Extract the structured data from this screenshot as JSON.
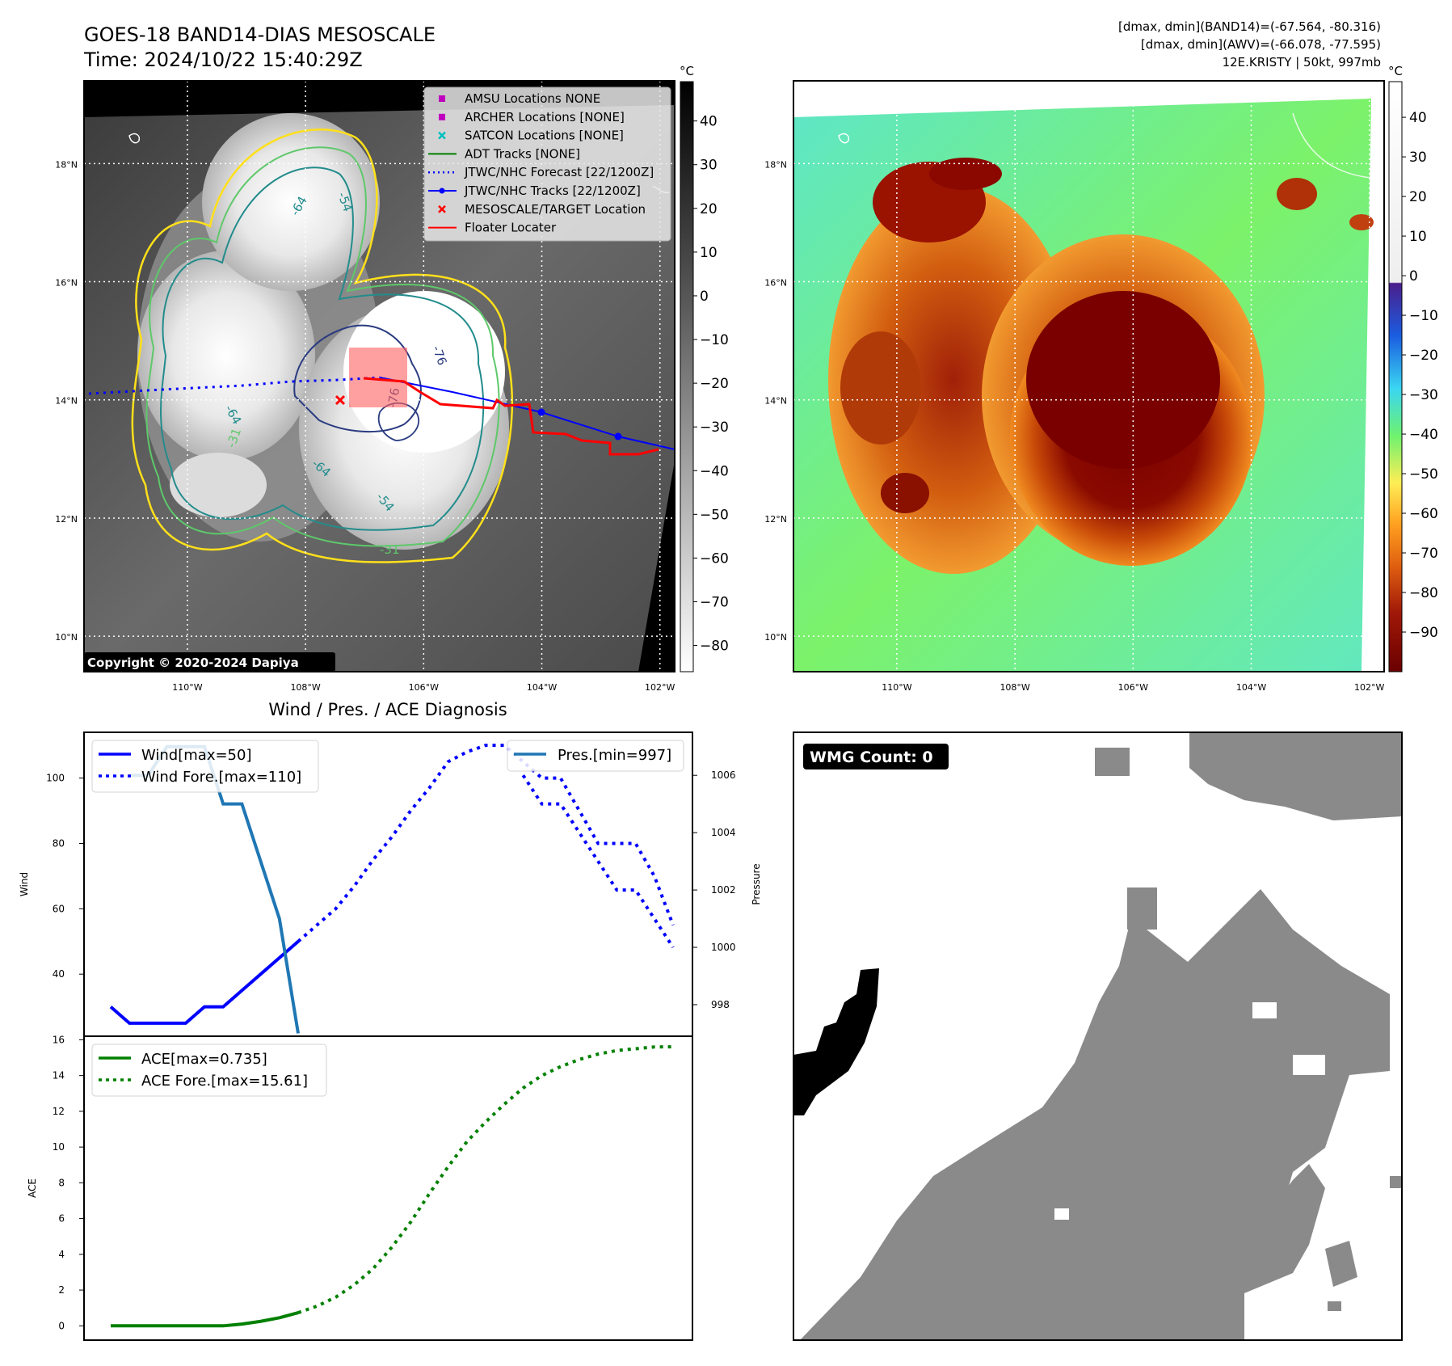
{
  "header": {
    "title": "GOES-18 BAND14-DIAS MESOSCALE",
    "time": "Time: 2024/10/22 15:40:29Z",
    "stats": [
      "[dmax, dmin](BAND14)=(-67.564, -80.316)",
      "[dmax, dmin](AWV)=(-66.078, -77.595)",
      "12E.KRISTY | 50kt, 997mb"
    ]
  },
  "maps": {
    "lat_ticks": [
      {
        "value": 18,
        "label": "18°N"
      },
      {
        "value": 16,
        "label": "16°N"
      },
      {
        "value": 14,
        "label": "14°N"
      },
      {
        "value": 12,
        "label": "12°N"
      },
      {
        "value": 10,
        "label": "10°N"
      }
    ],
    "lon_ticks": [
      {
        "value": -110,
        "label": "110°W"
      },
      {
        "value": -108,
        "label": "108°W"
      },
      {
        "value": -106,
        "label": "106°W"
      },
      {
        "value": -104,
        "label": "104°W"
      },
      {
        "value": -102,
        "label": "102°W"
      }
    ],
    "copyright": "Copyright © 2020-2024 Dapiya",
    "contour_labels": [
      "-31",
      "-54",
      "-64",
      "-76"
    ],
    "legend": [
      {
        "label": "AMSU Locations NONE",
        "marker": "square",
        "color": "#bf00bf"
      },
      {
        "label": "ARCHER Locations [NONE]",
        "marker": "square",
        "color": "#bf00bf"
      },
      {
        "label": "SATCON Locations [NONE]",
        "marker": "x",
        "color": "#00bfbf"
      },
      {
        "label": "ADT Tracks [NONE]",
        "marker": "line",
        "color": "#008000"
      },
      {
        "label": "JTWC/NHC Forecast [22/1200Z]",
        "marker": "dotted",
        "color": "#0000ff"
      },
      {
        "label": "JTWC/NHC Tracks [22/1200Z]",
        "marker": "line-dot",
        "color": "#0000ff"
      },
      {
        "label": "MESOSCALE/TARGET Location",
        "marker": "x",
        "color": "#ff0000"
      },
      {
        "label": "Floater Locater",
        "marker": "line",
        "color": "#ff0000"
      }
    ],
    "left_cbar": {
      "unit": "°C",
      "ticks": [
        40,
        30,
        20,
        10,
        0,
        -10,
        -20,
        -30,
        -40,
        -50,
        -60,
        -70,
        -80
      ]
    },
    "right_cbar": {
      "unit": "°C",
      "ticks": [
        40,
        30,
        20,
        10,
        0,
        -10,
        -20,
        -30,
        -40,
        -50,
        -60,
        -70,
        -80,
        -90
      ]
    }
  },
  "chart_data": [
    {
      "type": "line",
      "title": "Wind / Pres. / ACE Diagnosis",
      "ylabel": "Wind",
      "y2label": "Pressure",
      "ylim": [
        21,
        114
      ],
      "y2lim": [
        996.9,
        1007.5
      ],
      "yticks": [
        40,
        60,
        80,
        100
      ],
      "y2ticks": [
        998,
        1000,
        1002,
        1004,
        1006
      ],
      "series": [
        {
          "name": "Wind[max=50]",
          "axis": "left",
          "style": "solid",
          "color": "#0000ff",
          "x": [
            0,
            1,
            2,
            3,
            4,
            5,
            6,
            7,
            8,
            9,
            10
          ],
          "values": [
            30,
            25,
            25,
            25,
            25,
            30,
            30,
            35,
            40,
            45,
            50
          ]
        },
        {
          "name": "Wind Fore.[max=110]",
          "axis": "left",
          "style": "dotted",
          "color": "#0000ff",
          "x": [
            10,
            11,
            12,
            13,
            14,
            15,
            16,
            17,
            18,
            19,
            20,
            21,
            22,
            23,
            24,
            25,
            26,
            27,
            28,
            29,
            30
          ],
          "values": [
            50,
            55,
            60,
            67,
            75,
            82,
            90,
            97,
            105,
            108,
            110,
            110,
            105,
            100,
            100,
            90,
            80,
            80,
            80,
            70,
            55
          ]
        },
        {
          "name": "Pres.[min=997]",
          "axis": "right",
          "style": "solid",
          "color": "#1f77b4",
          "x": [
            1,
            2,
            3,
            4,
            5,
            6,
            7,
            8,
            9,
            10
          ],
          "values": [
            1006,
            1006,
            1007,
            1007,
            1007,
            1005,
            1005,
            1003,
            1001,
            997
          ]
        },
        {
          "name": "Pres.[min=997]",
          "axis": "right",
          "style": "dotted",
          "color": "#0000ff",
          "x": [
            22,
            23,
            24,
            25,
            26,
            27,
            28,
            29,
            30
          ],
          "values": [
            1006,
            1005,
            1005,
            1004,
            1003,
            1002,
            1002,
            1001,
            1000
          ]
        }
      ],
      "legend": [
        "Wind[max=50]",
        "Wind Fore.[max=110]",
        "Pres.[min=997]"
      ]
    },
    {
      "type": "line",
      "ylabel": "ACE",
      "ylim": [
        -0.8,
        16.2
      ],
      "yticks": [
        0,
        2,
        4,
        6,
        8,
        10,
        12,
        14,
        16
      ],
      "series": [
        {
          "name": "ACE[max=0.735]",
          "style": "solid",
          "color": "#008000",
          "x": [
            0,
            1,
            2,
            3,
            4,
            5,
            6,
            7,
            8,
            9,
            10
          ],
          "values": [
            0,
            0,
            0,
            0,
            0,
            0,
            0,
            0.1,
            0.25,
            0.45,
            0.735
          ]
        },
        {
          "name": "ACE Fore.[max=15.61]",
          "style": "dotted",
          "color": "#008000",
          "x": [
            10,
            11,
            12,
            13,
            14,
            15,
            16,
            17,
            18,
            19,
            20,
            21,
            22,
            23,
            24,
            25,
            26,
            27,
            28,
            29,
            30
          ],
          "values": [
            0.735,
            1.1,
            1.6,
            2.3,
            3.2,
            4.4,
            5.8,
            7.4,
            8.9,
            10.3,
            11.4,
            12.4,
            13.3,
            14.0,
            14.5,
            14.9,
            15.2,
            15.4,
            15.5,
            15.6,
            15.61
          ]
        }
      ]
    }
  ],
  "wmg": {
    "label": "WMG Count: 0"
  }
}
